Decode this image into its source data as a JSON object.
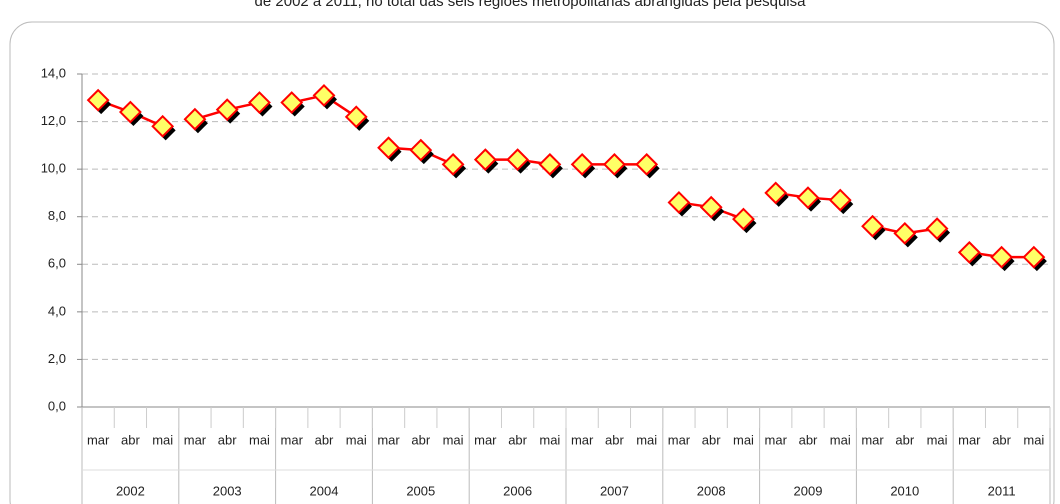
{
  "chart_data": {
    "type": "line",
    "title": "de 2002 a 2011, no total das seis regiões metropolitanas abrangidas pela pesquisa",
    "groups": [
      "2002",
      "2003",
      "2004",
      "2005",
      "2006",
      "2007",
      "2008",
      "2009",
      "2010",
      "2011"
    ],
    "categories": [
      "mar",
      "abr",
      "mai",
      "mar",
      "abr",
      "mai",
      "mar",
      "abr",
      "mai",
      "mar",
      "abr",
      "mai",
      "mar",
      "abr",
      "mai",
      "mar",
      "abr",
      "mai",
      "mar",
      "abr",
      "mai",
      "mar",
      "abr",
      "mai",
      "mar",
      "abr",
      "mai",
      "mar",
      "abr",
      "mai"
    ],
    "values": [
      12.9,
      12.4,
      11.8,
      12.1,
      12.5,
      12.8,
      12.8,
      13.1,
      12.2,
      10.9,
      10.8,
      10.2,
      10.4,
      10.4,
      10.2,
      10.2,
      10.2,
      10.2,
      8.6,
      8.4,
      7.9,
      9.0,
      8.8,
      8.7,
      7.6,
      7.3,
      7.5,
      6.5,
      6.3,
      6.3
    ],
    "color": "#ff0000",
    "marker_color": "#ffff66",
    "ylim": [
      0,
      14
    ],
    "yticks": [
      {
        "value": 0,
        "label": "0,0"
      },
      {
        "value": 2,
        "label": "2,0"
      },
      {
        "value": 4,
        "label": "4,0"
      },
      {
        "value": 6,
        "label": "6,0"
      },
      {
        "value": 8,
        "label": "8,0"
      },
      {
        "value": 10,
        "label": "10,0"
      },
      {
        "value": 12,
        "label": "12,0"
      },
      {
        "value": 14,
        "label": "14,0"
      }
    ],
    "grid": true
  }
}
